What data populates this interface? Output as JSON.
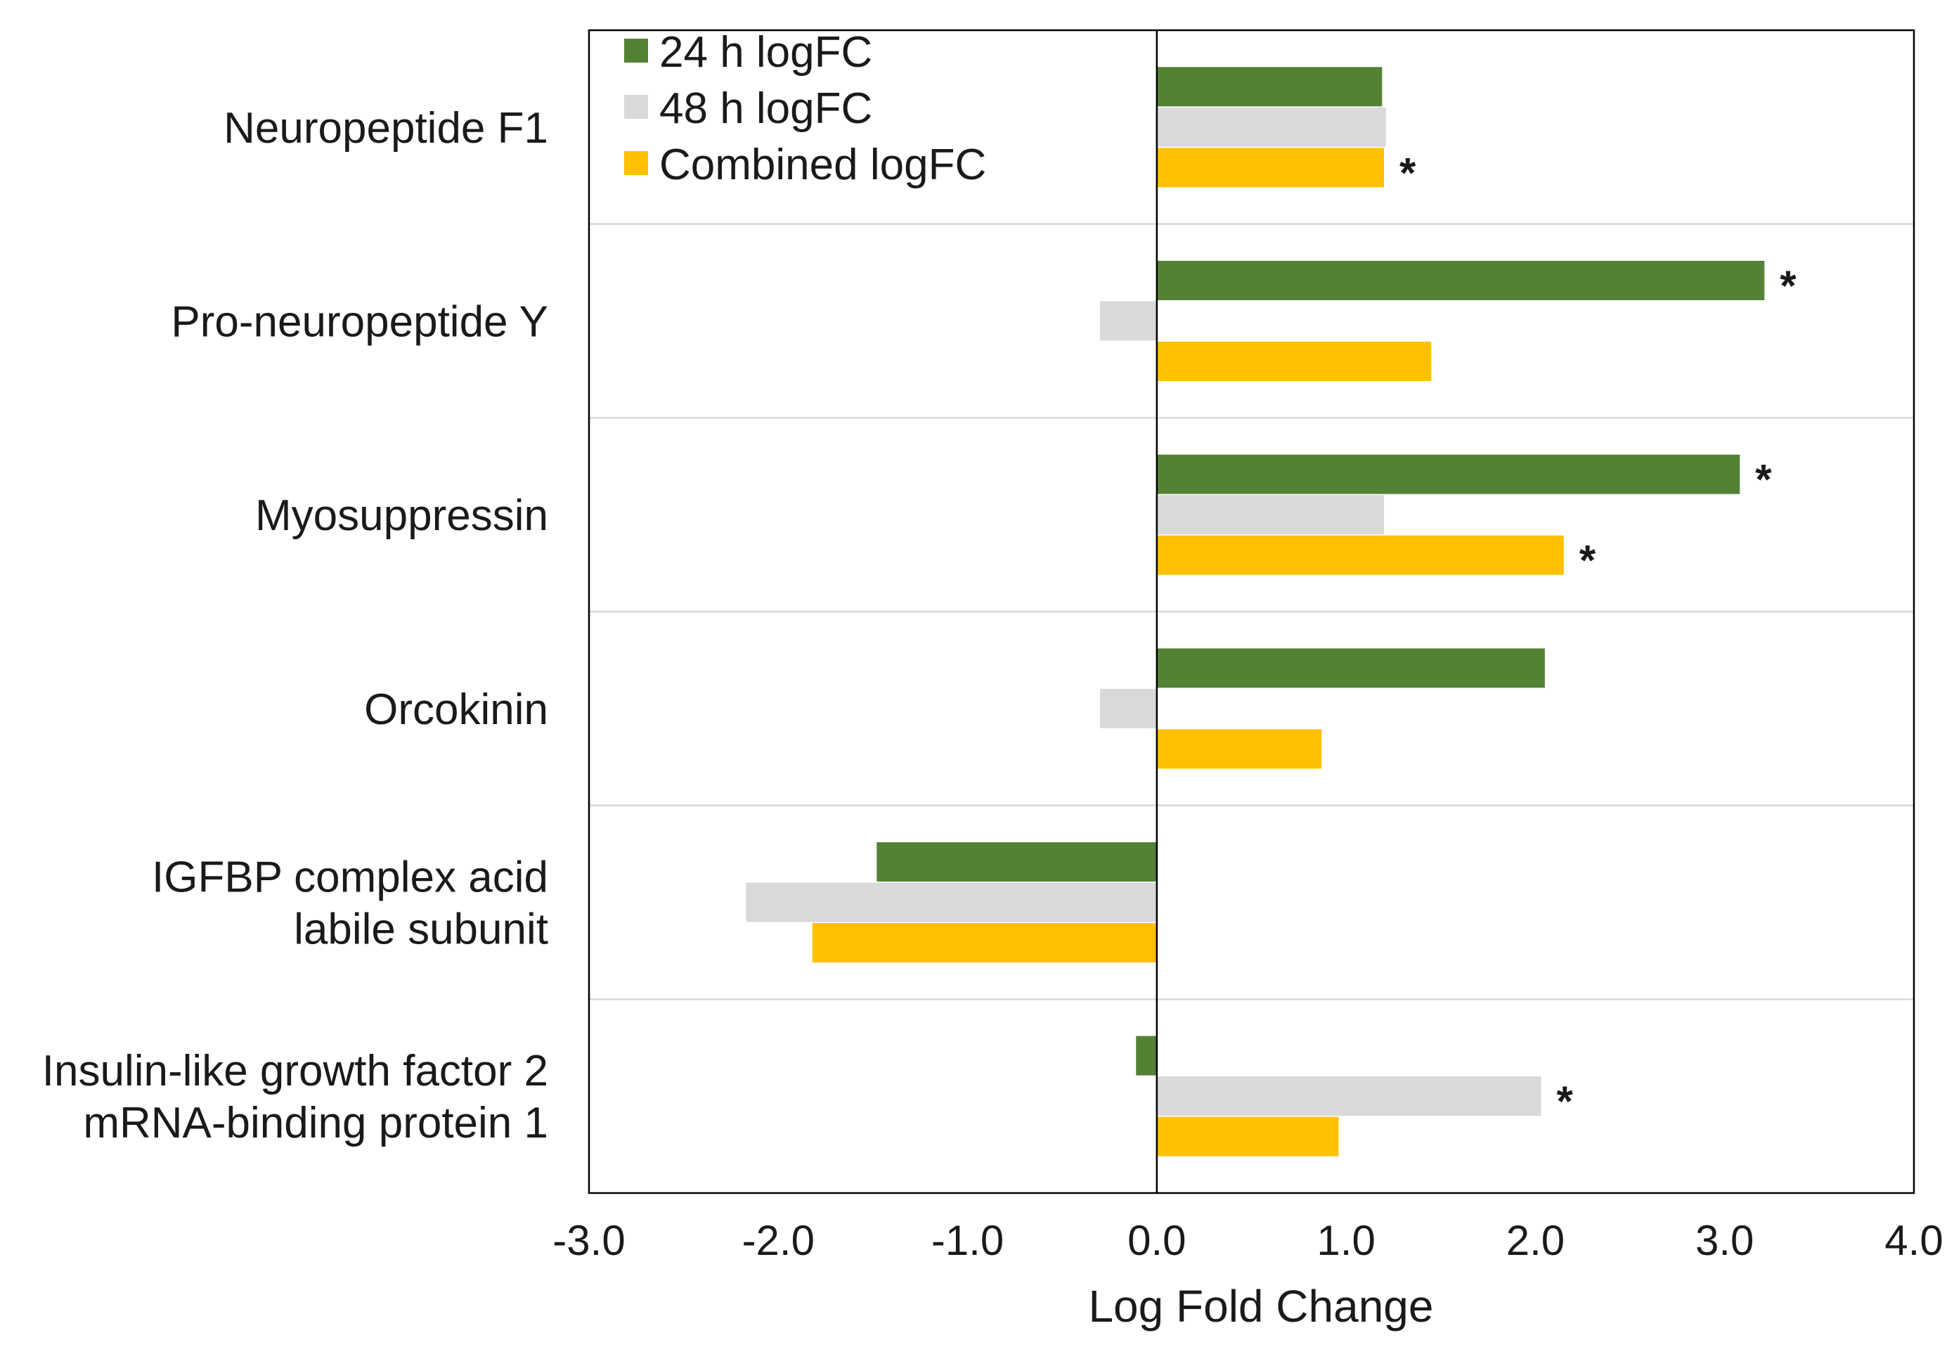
{
  "chart_data": {
    "type": "bar",
    "orientation": "horizontal",
    "title": "",
    "xlabel": "Log Fold Change",
    "ylabel": "",
    "xlim": [
      -3.0,
      4.0
    ],
    "xticks": [
      "-3.0",
      "-2.0",
      "-1.0",
      "0.0",
      "1.0",
      "2.0",
      "3.0",
      "4.0"
    ],
    "xtick_values": [
      -3,
      -2,
      -1,
      0,
      1,
      2,
      3,
      4
    ],
    "grid": "horizontal separators between categories",
    "legend_position": "top-left",
    "categories": [
      [
        "Neuropeptide F1"
      ],
      [
        "Pro-neuropeptide Y"
      ],
      [
        "Myosuppressin"
      ],
      [
        "Orcokinin"
      ],
      [
        "IGFBP complex acid",
        "labile subunit"
      ],
      [
        "Insulin-like growth factor 2",
        "mRNA-binding protein 1"
      ]
    ],
    "series": [
      {
        "name": "24 h logFC",
        "color": "#548235",
        "values": [
          1.19,
          3.21,
          3.08,
          2.05,
          -1.48,
          -0.11
        ]
      },
      {
        "name": "48 h logFC",
        "color": "#d9d9d9",
        "values": [
          1.21,
          -0.3,
          1.2,
          -0.3,
          -2.17,
          2.03
        ]
      },
      {
        "name": "Combined logFC",
        "color": "#ffc000",
        "values": [
          1.2,
          1.45,
          2.15,
          0.87,
          -1.82,
          0.96
        ]
      }
    ],
    "significance_marker": "*",
    "significant": [
      [
        false,
        false,
        true
      ],
      [
        true,
        false,
        false
      ],
      [
        true,
        false,
        true
      ],
      [
        false,
        false,
        false
      ],
      [
        false,
        false,
        false
      ],
      [
        false,
        true,
        false
      ]
    ]
  }
}
